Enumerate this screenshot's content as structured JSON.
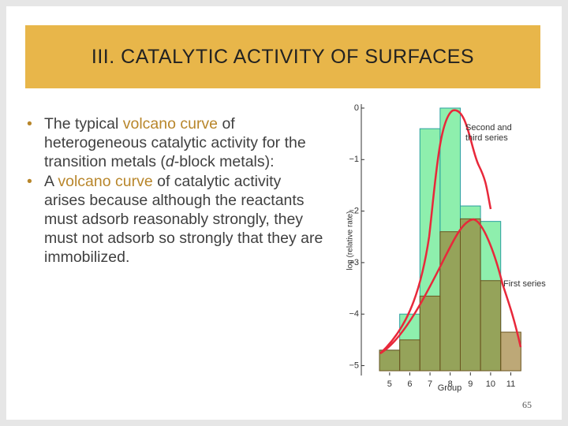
{
  "title": "III. CATALYTIC ACTIVITY OF SURFACES",
  "bullets": [
    [
      {
        "text": "The typical "
      },
      {
        "text": "volcano curve",
        "color": "#b8862b"
      },
      {
        "text": " of heterogeneous catalytic activity for the transition metals ("
      },
      {
        "text": "d",
        "italic": true
      },
      {
        "text": "-block metals):"
      }
    ],
    [
      {
        "text": "A "
      },
      {
        "text": "volcano curve",
        "color": "#b8862b"
      },
      {
        "text": " of catalytic activity arises because although the reactants must adsorb reasonably strongly, they must not adsorb so strongly that they are immobilized."
      }
    ]
  ],
  "page_number": "65",
  "chart_data": {
    "type": "bar",
    "x_label": "Group",
    "y_label": "log (relative rate)",
    "x": [
      5,
      6,
      7,
      8,
      9,
      10,
      11
    ],
    "series": [
      {
        "name": "Second and third series",
        "color": "#5ee88a",
        "values": [
          -4.7,
          -4.0,
          -0.4,
          0,
          -1.9,
          -2.2,
          null
        ]
      },
      {
        "name": "First series",
        "color": "#9a7a2e",
        "values": [
          -4.7,
          -4.5,
          -3.65,
          -2.4,
          -2.15,
          -3.35,
          -4.35
        ]
      }
    ],
    "xlim": [
      3.6,
      11.8
    ],
    "xticks": [
      5,
      6,
      7,
      8,
      9,
      10,
      11
    ],
    "ylim": [
      -5.1,
      0
    ],
    "yticks": [
      {
        "value": 0,
        "label": "0"
      },
      {
        "value": -1,
        "label": "−1"
      },
      {
        "value": -2,
        "label": "−2"
      },
      {
        "value": -3,
        "label": "−3"
      },
      {
        "value": -4,
        "label": "−4"
      },
      {
        "value": -5,
        "label": "−5"
      }
    ]
  }
}
